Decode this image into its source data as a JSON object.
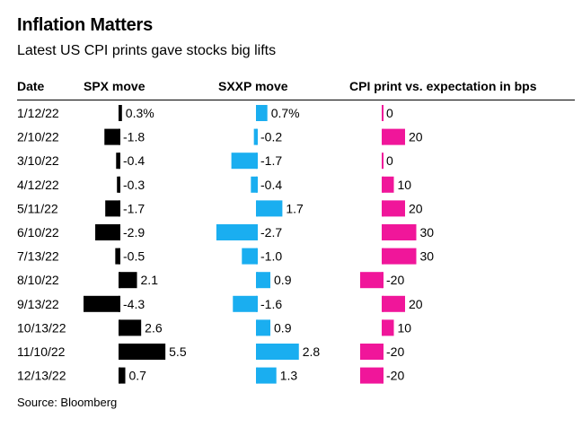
{
  "title": "Inflation Matters",
  "subtitle": "Latest US CPI prints gave stocks big lifts",
  "headers": {
    "date": "Date",
    "spx": "SPX move",
    "sxxp": "SXXP move",
    "cpi": "CPI print vs. expectation in bps"
  },
  "source": "Source: Bloomberg",
  "colors": {
    "spx": "#000000",
    "sxxp": "#1aaef0",
    "cpi": "#f0169a"
  },
  "chart_data": {
    "type": "bar",
    "categories": [
      "1/12/22",
      "2/10/22",
      "3/10/22",
      "4/12/22",
      "5/11/22",
      "6/10/22",
      "7/13/22",
      "8/10/22",
      "9/13/22",
      "10/13/22",
      "11/10/22",
      "12/13/22"
    ],
    "series": [
      {
        "name": "SPX move",
        "values": [
          0.3,
          -1.8,
          -0.4,
          -0.3,
          -1.7,
          -2.9,
          -0.5,
          2.1,
          -4.3,
          2.6,
          5.5,
          0.7
        ],
        "labels": [
          "0.3%",
          "-1.8",
          "-0.4",
          "-0.3",
          "-1.7",
          "-2.9",
          "-0.5",
          "2.1",
          "-4.3",
          "2.6",
          "5.5",
          "0.7"
        ]
      },
      {
        "name": "SXXP move",
        "values": [
          0.7,
          -0.2,
          -1.7,
          -0.4,
          1.7,
          -2.7,
          -1.0,
          0.9,
          -1.6,
          0.9,
          2.8,
          1.3
        ],
        "labels": [
          "0.7%",
          "-0.2",
          "-1.7",
          "-0.4",
          "1.7",
          "-2.7",
          "-1.0",
          "0.9",
          "-1.6",
          "0.9",
          "2.8",
          "1.3"
        ]
      },
      {
        "name": "CPI print vs. expectation in bps",
        "values": [
          0,
          20,
          0,
          10,
          20,
          30,
          30,
          -20,
          20,
          10,
          -20,
          -20
        ],
        "labels": [
          "0",
          "20",
          "0",
          "10",
          "20",
          "30",
          "30",
          "-20",
          "20",
          "10",
          "-20",
          "-20"
        ]
      }
    ]
  }
}
